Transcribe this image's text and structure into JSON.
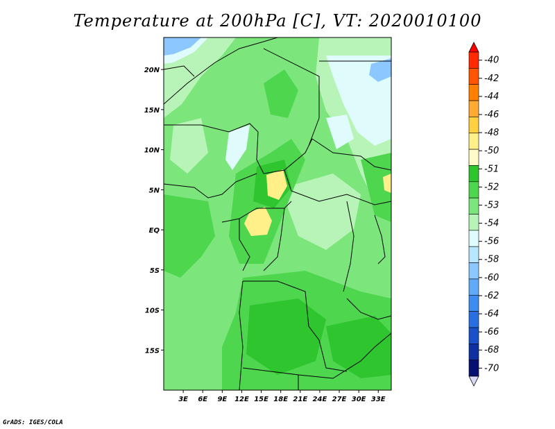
{
  "title": "Temperature at 200hPa [C], VT: 2020010100",
  "credit": "GrADS: IGES/COLA",
  "map": {
    "lon_range": [
      0,
      35
    ],
    "lat_range": [
      -20,
      24
    ],
    "x_ticks": [
      "3E",
      "6E",
      "9E",
      "12E",
      "15E",
      "18E",
      "21E",
      "24E",
      "27E",
      "30E",
      "33E"
    ],
    "x_tick_values": [
      3,
      6,
      9,
      12,
      15,
      18,
      21,
      24,
      27,
      30,
      33
    ],
    "y_ticks": [
      "20N",
      "15N",
      "10N",
      "5N",
      "EQ",
      "5S",
      "10S",
      "15S"
    ],
    "y_tick_values": [
      20,
      15,
      10,
      5,
      0,
      -5,
      -10,
      -15
    ]
  },
  "colorbar": {
    "colors": [
      "#ff2a00",
      "#ff5500",
      "#ff8000",
      "#ffaa33",
      "#ffd040",
      "#fff08a",
      "#fffac8",
      "#2ec52e",
      "#4fd64f",
      "#7ce67c",
      "#b8f4b8",
      "#e0fbfb",
      "#b8e6ff",
      "#8cc8ff",
      "#62aaf8",
      "#3e8cef",
      "#2a6fe0",
      "#1a50c8",
      "#0e30a0",
      "#051070"
    ],
    "top_color": "#ff0000",
    "bottom_color": "#d8d8f8",
    "labels": [
      "-40",
      "-42",
      "-44",
      "-46",
      "-48",
      "-50",
      "-51",
      "-52",
      "-53",
      "-54",
      "-56",
      "-58",
      "-60",
      "-62",
      "-64",
      "-66",
      "-68",
      "-70"
    ]
  }
}
